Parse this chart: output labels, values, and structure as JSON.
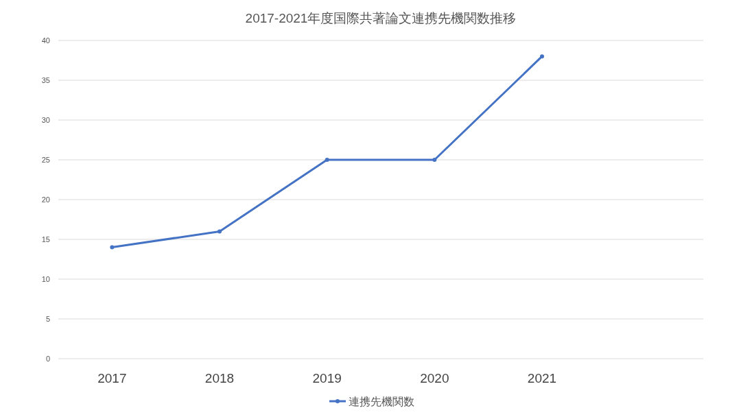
{
  "chart_data": {
    "type": "line",
    "title": "2017-2021年度国際共著論文連携先機関数推移",
    "categories": [
      "2017",
      "2018",
      "2019",
      "2020",
      "2021",
      null
    ],
    "series": [
      {
        "name": "連携先機関数",
        "color": "#4472c4",
        "values": [
          14,
          16,
          25,
          25,
          38,
          null
        ]
      }
    ],
    "ylim": [
      0,
      40
    ],
    "yticks": [
      0,
      5,
      10,
      15,
      20,
      25,
      30,
      35,
      40
    ],
    "grid": "y",
    "legend": "bottom",
    "marker": "circle",
    "line_style": "solid"
  }
}
